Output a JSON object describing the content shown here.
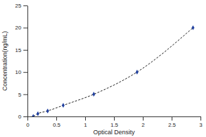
{
  "chart_data": {
    "type": "line",
    "x_label": "Optical Density",
    "y_label": "Concentration(ng/mL)",
    "x": [
      0.1,
      0.18,
      0.35,
      0.62,
      1.15,
      1.9,
      2.87
    ],
    "values": [
      0,
      0.625,
      1.25,
      2.5,
      5,
      10,
      20
    ],
    "color": "#1f3f9f",
    "marker": "diamond",
    "line_style": "dashed",
    "xlim": [
      0,
      3
    ],
    "xticks": [
      0,
      0.5,
      1,
      1.5,
      2,
      2.5,
      3
    ],
    "ylim": [
      0,
      25
    ],
    "yticks": [
      0,
      5,
      10,
      15,
      20,
      25
    ],
    "grid": false
  }
}
